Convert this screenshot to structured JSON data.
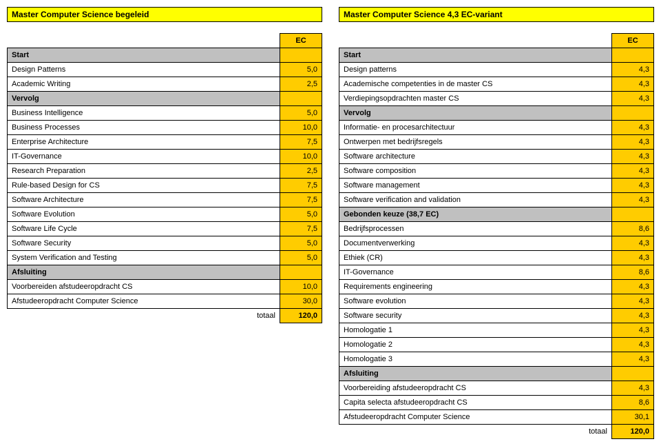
{
  "left": {
    "title": "Master Computer Science begeleid",
    "ec_label": "EC",
    "sections": [
      {
        "type": "section",
        "label": "Start",
        "val": ""
      },
      {
        "type": "row",
        "label": "Design Patterns",
        "val": "5,0"
      },
      {
        "type": "row",
        "label": "Academic Writing",
        "val": "2,5"
      },
      {
        "type": "section",
        "label": "Vervolg",
        "val": ""
      },
      {
        "type": "row",
        "label": "Business Intelligence",
        "val": "5,0"
      },
      {
        "type": "row",
        "label": "Business Processes",
        "val": "10,0"
      },
      {
        "type": "row",
        "label": "Enterprise Architecture",
        "val": "7,5"
      },
      {
        "type": "row",
        "label": "IT-Governance",
        "val": "10,0"
      },
      {
        "type": "row",
        "label": "Research Preparation",
        "val": "2,5"
      },
      {
        "type": "row",
        "label": "Rule-based Design for CS",
        "val": "7,5"
      },
      {
        "type": "row",
        "label": "Software Architecture",
        "val": "7,5"
      },
      {
        "type": "row",
        "label": "Software Evolution",
        "val": "5,0"
      },
      {
        "type": "row",
        "label": "Software Life Cycle",
        "val": "7,5"
      },
      {
        "type": "row",
        "label": "Software Security",
        "val": "5,0"
      },
      {
        "type": "row",
        "label": "System Verification and Testing",
        "val": "5,0"
      },
      {
        "type": "section",
        "label": "Afsluiting",
        "val": ""
      },
      {
        "type": "row",
        "label": "Voorbereiden afstudeeropdracht CS",
        "val": "10,0"
      },
      {
        "type": "row",
        "label": "Afstudeeropdracht Computer Science",
        "val": "30,0"
      }
    ],
    "total_label": "totaal",
    "total_val": "120,0"
  },
  "right": {
    "title": "Master Computer Science 4,3 EC-variant",
    "ec_label": "EC",
    "sections": [
      {
        "type": "section",
        "label": "Start",
        "val": ""
      },
      {
        "type": "row",
        "label": "Design patterns",
        "val": "4,3"
      },
      {
        "type": "row",
        "label": "Academische competenties in de master CS",
        "val": "4,3"
      },
      {
        "type": "row",
        "label": "Verdiepingsopdrachten master CS",
        "val": "4,3"
      },
      {
        "type": "section",
        "label": "Vervolg",
        "val": ""
      },
      {
        "type": "row",
        "label": "Informatie- en procesarchitectuur",
        "val": "4,3"
      },
      {
        "type": "row",
        "label": "Ontwerpen met bedrijfsregels",
        "val": "4,3"
      },
      {
        "type": "row",
        "label": "Software architecture",
        "val": "4,3"
      },
      {
        "type": "row",
        "label": "Software composition",
        "val": "4,3"
      },
      {
        "type": "row",
        "label": "Software management",
        "val": "4,3"
      },
      {
        "type": "row",
        "label": "Software verification and validation",
        "val": "4,3"
      },
      {
        "type": "section",
        "label": "Gebonden keuze (38,7 EC)",
        "val": ""
      },
      {
        "type": "row",
        "label": "Bedrijfsprocessen",
        "val": "8,6"
      },
      {
        "type": "row",
        "label": "Documentverwerking",
        "val": "4,3"
      },
      {
        "type": "row",
        "label": "Ethiek (CR)",
        "val": "4,3"
      },
      {
        "type": "row",
        "label": "IT-Governance",
        "val": "8,6"
      },
      {
        "type": "row",
        "label": "Requirements engineering",
        "val": "4,3"
      },
      {
        "type": "row",
        "label": "Software evolution",
        "val": "4,3"
      },
      {
        "type": "row",
        "label": "Software security",
        "val": "4,3"
      },
      {
        "type": "row",
        "label": "Homologatie 1",
        "val": "4,3"
      },
      {
        "type": "row",
        "label": "Homologatie 2",
        "val": "4,3"
      },
      {
        "type": "row",
        "label": "Homologatie 3",
        "val": "4,3"
      },
      {
        "type": "section",
        "label": "Afsluiting",
        "val": ""
      },
      {
        "type": "row",
        "label": "Voorbereiding afstudeeropdracht CS",
        "val": "4,3"
      },
      {
        "type": "row",
        "label": "Capita selecta afstudeeropdracht CS",
        "val": "8,6"
      },
      {
        "type": "row",
        "label": "Afstudeeropdracht Computer Science",
        "val": "30,1"
      }
    ],
    "total_label": "totaal",
    "total_val": "120,0"
  }
}
